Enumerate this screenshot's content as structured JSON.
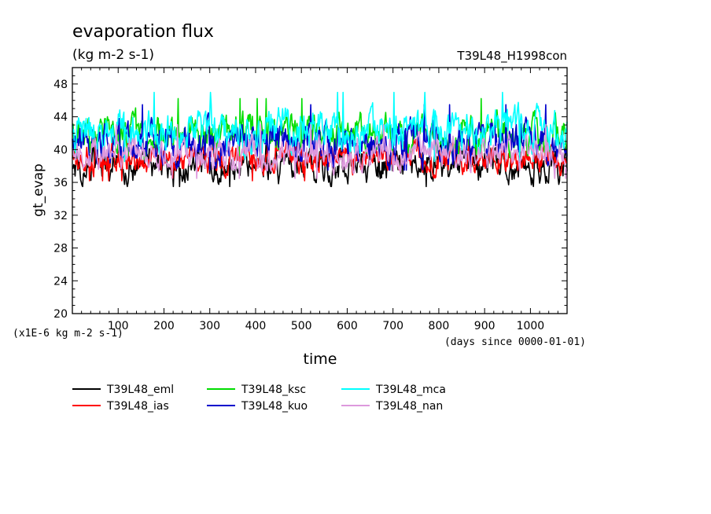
{
  "chart_data": {
    "type": "line",
    "title": "evaporation flux",
    "subtitle": "(kg m-2 s-1)",
    "experiment": "T39L48_H1998con",
    "xlabel": "time",
    "ylabel": "gt_evap",
    "x_unit_note": "(days since 0000-01-01)",
    "y_scale_note": "(x1E-6 kg m-2 s-1)",
    "xlim": [
      0,
      1080
    ],
    "ylim": [
      20,
      50
    ],
    "x_ticks": [
      100,
      200,
      300,
      400,
      500,
      600,
      700,
      800,
      900,
      1000
    ],
    "y_ticks": [
      20,
      24,
      28,
      32,
      36,
      40,
      44,
      48
    ],
    "grid": false,
    "legend_position": "bottom",
    "series": [
      {
        "name": "T39L48_eml",
        "color": "#000000",
        "mean": 38.0,
        "amplitude": 1.5,
        "min": 35.5,
        "max": 41.0
      },
      {
        "name": "T39L48_ias",
        "color": "#ff0000",
        "mean": 38.9,
        "amplitude": 1.3,
        "min": 34.7,
        "max": 41.5
      },
      {
        "name": "T39L48_ksc",
        "color": "#00dd00",
        "mean": 41.8,
        "amplitude": 1.7,
        "min": 37.3,
        "max": 46.4
      },
      {
        "name": "T39L48_kuo",
        "color": "#0000cc",
        "mean": 40.8,
        "amplitude": 1.8,
        "min": 37.5,
        "max": 46.1
      },
      {
        "name": "T39L48_mca",
        "color": "#00ffff",
        "mean": 42.3,
        "amplitude": 1.8,
        "min": 38.5,
        "max": 47.2
      },
      {
        "name": "T39L48_nan",
        "color": "#dd99dd",
        "mean": 39.4,
        "amplitude": 1.4,
        "min": 35.8,
        "max": 45.8
      }
    ]
  }
}
